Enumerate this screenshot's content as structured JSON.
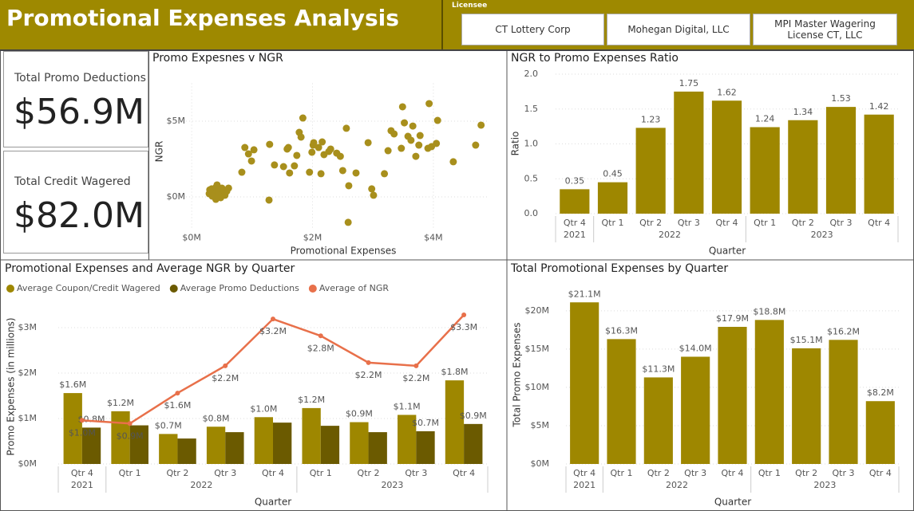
{
  "header": {
    "title": "Promotional Expenses Analysis",
    "slicer": {
      "label": "Licensee",
      "options": [
        "CT Lottery Corp",
        "Mohegan Digital, LLC",
        "MPI Master Wagering License CT, LLC"
      ]
    }
  },
  "cards": [
    {
      "label": "Total Promo Deductions",
      "value": "$56.9M"
    },
    {
      "label": "Total Credit Wagered",
      "value": "$82.0M"
    }
  ],
  "chart_data": [
    {
      "type": "scatter",
      "title": "Promo Expesnes v NGR",
      "x_label": "Promotional Expenses",
      "y_label": "NGR",
      "color": "#a88f1c",
      "x": [
        290000,
        330000,
        370000,
        400000,
        420000,
        460000,
        500000,
        530000,
        550000,
        580000,
        400000,
        480000,
        340000,
        610000,
        440000,
        300000,
        830000,
        880000,
        940000,
        990000,
        1030000,
        1280000,
        1290000,
        1370000,
        1520000,
        1580000,
        1600000,
        1620000,
        1700000,
        1740000,
        1780000,
        1810000,
        1840000,
        1950000,
        1990000,
        2010000,
        2020000,
        2100000,
        2140000,
        2160000,
        2190000,
        2270000,
        2300000,
        2400000,
        2460000,
        2500000,
        2560000,
        2590000,
        2600000,
        2720000,
        2920000,
        2980000,
        3010000,
        3190000,
        3250000,
        3300000,
        3350000,
        3470000,
        3490000,
        3520000,
        3580000,
        3630000,
        3660000,
        3710000,
        3760000,
        3780000,
        3910000,
        3930000,
        3970000,
        4070000,
        4050000,
        4330000,
        4700000,
        4790000
      ],
      "y": [
        210000,
        530000,
        370000,
        630000,
        790000,
        470000,
        580000,
        260000,
        110000,
        370000,
        -160000,
        -50000,
        50000,
        580000,
        160000,
        470000,
        1630000,
        3260000,
        2840000,
        2370000,
        3110000,
        -210000,
        3470000,
        2110000,
        2000000,
        3160000,
        3260000,
        1580000,
        2050000,
        2740000,
        4260000,
        3950000,
        5210000,
        1630000,
        2950000,
        3420000,
        3580000,
        3260000,
        1530000,
        3630000,
        2790000,
        3000000,
        3160000,
        2890000,
        2680000,
        1740000,
        4530000,
        -1680000,
        740000,
        1580000,
        3580000,
        530000,
        110000,
        1530000,
        3050000,
        4370000,
        4160000,
        3210000,
        5950000,
        4890000,
        4000000,
        3740000,
        4680000,
        2680000,
        3420000,
        4050000,
        3210000,
        6160000,
        3320000,
        5050000,
        3530000,
        2320000,
        3420000,
        4740000
      ],
      "xlim": [
        -200000,
        4900000
      ],
      "ylim": [
        -2500000,
        7500000
      ],
      "xticks": [
        {
          "value": 0,
          "label": "$0M"
        },
        {
          "value": 2000000,
          "label": "$2M"
        },
        {
          "value": 4000000,
          "label": "$4M"
        }
      ],
      "yticks": [
        {
          "value": 0,
          "label": "$0M"
        },
        {
          "value": 5000000,
          "label": "$5M"
        }
      ],
      "grid": true
    },
    {
      "type": "bar",
      "title": "NGR to Promo Expenses Ratio",
      "x_label": "Quarter",
      "y_label": "Ratio",
      "color": "#9e8700",
      "categories": [
        "Qtr 4",
        "Qtr 1",
        "Qtr 2",
        "Qtr 3",
        "Qtr 4",
        "Qtr 1",
        "Qtr 2",
        "Qtr 3",
        "Qtr 4"
      ],
      "years": [
        "2021",
        "2022",
        "2022",
        "2022",
        "2022",
        "2023",
        "2023",
        "2023",
        "2023"
      ],
      "values": [
        0.35,
        0.45,
        1.23,
        1.75,
        1.62,
        1.24,
        1.34,
        1.53,
        1.42
      ],
      "ylim": [
        0,
        2
      ],
      "yticks": [
        {
          "value": 0,
          "label": "0.0"
        },
        0.5,
        {
          "value": 1,
          "label": "1.0"
        },
        1.5,
        {
          "value": 2,
          "label": "2.0"
        }
      ],
      "grid": true
    },
    {
      "type": "bar_line",
      "title": "Promotional Expenses and Average NGR by Quarter",
      "x_label": "Quarter",
      "y_label": "Promo Expenses (in millions)",
      "legend": "top-left",
      "categories": [
        "Qtr 4",
        "Qtr 1",
        "Qtr 2",
        "Qtr 3",
        "Qtr 4",
        "Qtr 1",
        "Qtr 2",
        "Qtr 3",
        "Qtr 4"
      ],
      "years": [
        "2021",
        "2022",
        "2022",
        "2022",
        "2022",
        "2023",
        "2023",
        "2023",
        "2023"
      ],
      "series": [
        {
          "name": "Average Coupon/Credit Wagered",
          "color": "#9e8700",
          "kind": "bar",
          "values": [
            1560000,
            1160000,
            660000,
            820000,
            1030000,
            1230000,
            920000,
            1080000,
            1840000
          ],
          "value_labels": [
            "$1.6M",
            "$1.2M",
            "$0.7M",
            "$0.8M",
            "$1.0M",
            "$1.2M",
            "$0.9M",
            "$1.1M",
            "$1.8M"
          ]
        },
        {
          "name": "Average Promo Deductions",
          "color": "#6b5a00",
          "kind": "bar",
          "values": [
            800000,
            850000,
            560000,
            700000,
            910000,
            840000,
            700000,
            720000,
            880000
          ],
          "value_labels": [
            "$0.8M",
            null,
            null,
            null,
            null,
            null,
            null,
            "$0.7M",
            "$0.9M"
          ]
        },
        {
          "name": "Average of NGR",
          "color": "#e8704a",
          "kind": "line",
          "values": [
            960000,
            890000,
            1560000,
            2160000,
            3190000,
            2820000,
            2230000,
            2160000,
            3280000
          ],
          "value_labels": [
            "$1.0M",
            "$0.9M",
            "$1.6M",
            "$2.2M",
            "$3.2M",
            "$2.8M",
            "$2.2M",
            "$2.2M",
            "$3.3M"
          ]
        }
      ],
      "ylim": [
        0,
        3500000
      ],
      "yticks": [
        {
          "value": 0,
          "label": "$0M"
        },
        {
          "value": 1000000,
          "label": "$1M"
        },
        {
          "value": 2000000,
          "label": "$2M"
        },
        {
          "value": 3000000,
          "label": "$3M"
        }
      ],
      "grid": true
    },
    {
      "type": "bar",
      "title": "Total Promotional Expenses by Quarter",
      "x_label": "Quarter",
      "y_label": "Total Promo Expenses",
      "color": "#9e8700",
      "categories": [
        "Qtr 4",
        "Qtr 1",
        "Qtr 2",
        "Qtr 3",
        "Qtr 4",
        "Qtr 1",
        "Qtr 2",
        "Qtr 3",
        "Qtr 4"
      ],
      "years": [
        "2021",
        "2022",
        "2022",
        "2022",
        "2022",
        "2023",
        "2023",
        "2023",
        "2023"
      ],
      "values": [
        21100000,
        16300000,
        11300000,
        14000000,
        17900000,
        18800000,
        15100000,
        16200000,
        8200000
      ],
      "value_labels": [
        "$21.1M",
        "$16.3M",
        "$11.3M",
        "$14.0M",
        "$17.9M",
        "$18.8M",
        "$15.1M",
        "$16.2M",
        "$8.2M"
      ],
      "ylim": [
        0,
        23000000
      ],
      "yticks": [
        {
          "value": 0,
          "label": "$0M"
        },
        {
          "value": 5000000,
          "label": "$5M"
        },
        {
          "value": 10000000,
          "label": "$10M"
        },
        {
          "value": 15000000,
          "label": "$15M"
        },
        {
          "value": 20000000,
          "label": "$20M"
        }
      ],
      "grid": true
    }
  ]
}
